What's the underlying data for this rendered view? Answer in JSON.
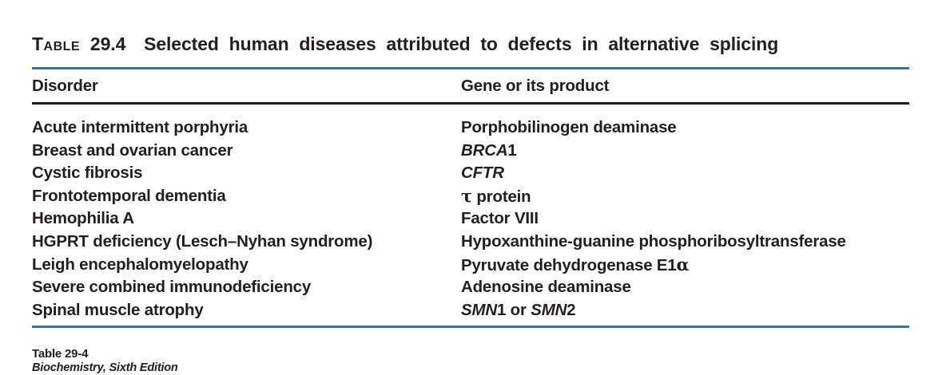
{
  "colors": {
    "rule_blue": "#3d7294",
    "rule_black": "#1c1c1c",
    "text": "#231f20"
  },
  "title": {
    "label_word": "Table",
    "label_number": "29.4",
    "text": "Selected human diseases attributed to defects in alternative splicing"
  },
  "table": {
    "columns": [
      "Disorder",
      "Gene or its product"
    ],
    "rows": [
      {
        "disorder": "Acute intermittent porphyria",
        "gene": [
          {
            "text": "Porphobilinogen deaminase",
            "style": "plain"
          }
        ]
      },
      {
        "disorder": "Breast and ovarian cancer",
        "gene": [
          {
            "text": "BRCA",
            "style": "italic"
          },
          {
            "text": "1",
            "style": "plain"
          }
        ]
      },
      {
        "disorder": "Cystic fibrosis",
        "gene": [
          {
            "text": "CFTR",
            "style": "italic"
          }
        ]
      },
      {
        "disorder": "Frontotemporal dementia",
        "gene": [
          {
            "text": "τ",
            "style": "greek"
          },
          {
            "text": " protein",
            "style": "plain"
          }
        ]
      },
      {
        "disorder": "Hemophilia A",
        "gene": [
          {
            "text": "Factor VIII",
            "style": "plain"
          }
        ]
      },
      {
        "disorder": "HGPRT deficiency (Lesch–Nyhan syndrome)",
        "gene": [
          {
            "text": "Hypoxanthine-guanine phosphoribosyltransferase",
            "style": "plain"
          }
        ]
      },
      {
        "disorder": "Leigh encephalomyelopathy",
        "gene": [
          {
            "text": "Pyruvate dehydrogenase E1",
            "style": "plain"
          },
          {
            "text": "α",
            "style": "greek"
          }
        ]
      },
      {
        "disorder": "Severe combined immunodeficiency",
        "gene": [
          {
            "text": "Adenosine deaminase",
            "style": "plain"
          }
        ]
      },
      {
        "disorder": "Spinal muscle atrophy",
        "gene": [
          {
            "text": "SMN",
            "style": "italic"
          },
          {
            "text": "1 or ",
            "style": "plain"
          },
          {
            "text": "SMN",
            "style": "italic"
          },
          {
            "text": "2",
            "style": "plain"
          }
        ]
      }
    ]
  },
  "footer": {
    "line1": "Table 29-4",
    "line2": "Biochemistry, Sixth Edition"
  }
}
